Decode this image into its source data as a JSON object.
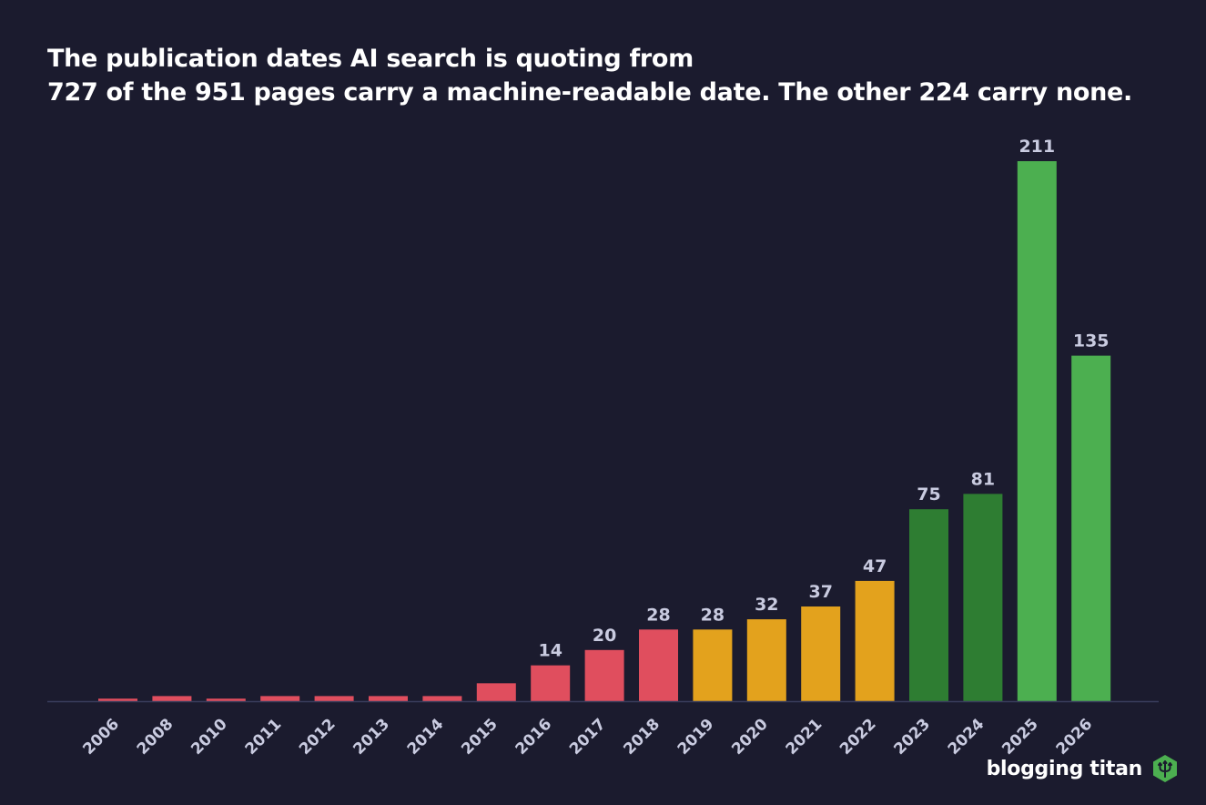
{
  "header": {
    "title": "The publication dates AI search is quoting from",
    "subtitle": "727 of the 951 pages carry a machine-readable date. The other 224 carry none."
  },
  "brand": {
    "name": "blogging titan",
    "icon": "trident-hexagon-icon",
    "icon_color": "#4caf50"
  },
  "colors": {
    "background": "#1b1b2e",
    "axis": "#3a3d5c",
    "label": "#c9cbe0",
    "red": "#e04e5e",
    "amber": "#e3a21d",
    "dark_green": "#2e7d32",
    "green": "#4caf50"
  },
  "chart_data": {
    "type": "bar",
    "categories": [
      "2006",
      "2008",
      "2010",
      "2011",
      "2012",
      "2013",
      "2014",
      "2015",
      "2016",
      "2017",
      "2018",
      "2019",
      "2020",
      "2021",
      "2022",
      "2023",
      "2024",
      "2025",
      "2026"
    ],
    "values": [
      1,
      2,
      1,
      2,
      2,
      2,
      2,
      7,
      14,
      20,
      28,
      28,
      32,
      37,
      47,
      75,
      81,
      211,
      135
    ],
    "labels": [
      "",
      "",
      "",
      "",
      "",
      "",
      "",
      "",
      "14",
      "20",
      "28",
      "28",
      "32",
      "37",
      "47",
      "75",
      "81",
      "211",
      "135"
    ],
    "colors": [
      "#e04e5e",
      "#e04e5e",
      "#e04e5e",
      "#e04e5e",
      "#e04e5e",
      "#e04e5e",
      "#e04e5e",
      "#e04e5e",
      "#e04e5e",
      "#e04e5e",
      "#e04e5e",
      "#e3a21d",
      "#e3a21d",
      "#e3a21d",
      "#e3a21d",
      "#2e7d32",
      "#2e7d32",
      "#4caf50",
      "#4caf50"
    ],
    "ylim": [
      0,
      211
    ],
    "xlabel": "",
    "ylabel": "",
    "grid": false,
    "legend": "none"
  }
}
